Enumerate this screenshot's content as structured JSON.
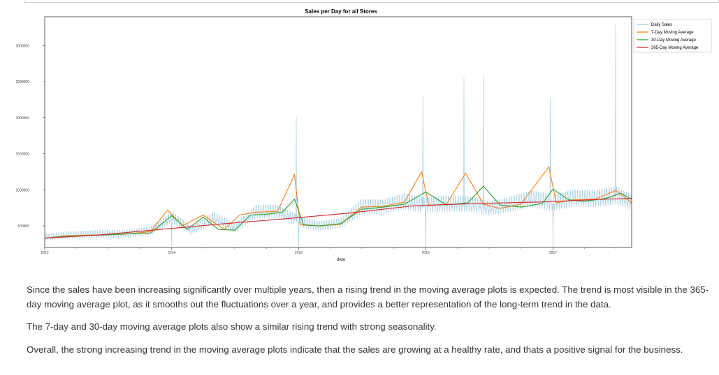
{
  "chart_data": {
    "type": "line",
    "title": "Sales per Day for all Stores",
    "xlabel": "date",
    "ylabel": "",
    "x_range": [
      "2013-01-01",
      "2017-08-15"
    ],
    "ylim": [
      200000,
      3400000
    ],
    "x_ticks": [
      {
        "label": "2013",
        "date": "2013-01-01"
      },
      {
        "label": "2014",
        "date": "2014-01-01"
      },
      {
        "label": "2015",
        "date": "2015-01-01"
      },
      {
        "label": "2016",
        "date": "2016-01-01"
      },
      {
        "label": "2017",
        "date": "2017-01-01"
      }
    ],
    "y_ticks": [
      {
        "label": "500000",
        "value": 500000
      },
      {
        "label": "1000000",
        "value": 1000000
      },
      {
        "label": "1500000",
        "value": 1500000
      },
      {
        "label": "2000000",
        "value": 2000000
      },
      {
        "label": "2500000",
        "value": 2500000
      },
      {
        "label": "3000000",
        "value": 3000000
      }
    ],
    "grid": false,
    "legend_position": "outside-right",
    "series": [
      {
        "name": "Daily Sales",
        "color": "#a6cee3",
        "x": [
          "2013-01-01",
          "2013-03-01",
          "2013-05-01",
          "2013-07-01",
          "2013-09-01",
          "2013-11-01",
          "2014-01-01",
          "2014-03-01",
          "2014-05-01",
          "2014-07-01",
          "2014-09-01",
          "2014-11-01",
          "2015-01-01",
          "2015-03-01",
          "2015-05-01",
          "2015-07-01",
          "2015-09-01",
          "2015-11-01",
          "2016-01-01",
          "2016-03-01",
          "2016-05-01",
          "2016-07-01",
          "2016-09-01",
          "2016-11-01",
          "2017-01-01",
          "2017-03-01",
          "2017-05-01",
          "2017-07-01",
          "2017-08-15"
        ],
        "values": [
          330000,
          360000,
          370000,
          380000,
          380000,
          420000,
          600000,
          420000,
          600000,
          450000,
          680000,
          680000,
          550000,
          480000,
          520000,
          750000,
          740000,
          820000,
          760000,
          790000,
          780000,
          720000,
          780000,
          850000,
          800000,
          860000,
          850000,
          900000,
          800000
        ],
        "spikes": [
          {
            "x": "2014-12-25",
            "y": 2020000
          },
          {
            "x": "2015-12-24",
            "y": 2290000
          },
          {
            "x": "2016-04-20",
            "y": 2550000
          },
          {
            "x": "2016-06-15",
            "y": 2580000
          },
          {
            "x": "2016-12-24",
            "y": 2280000
          },
          {
            "x": "2017-06-30",
            "y": 3290000
          }
        ],
        "dips": [
          {
            "x": "2014-01-01",
            "y": 230000
          },
          {
            "x": "2015-01-01",
            "y": 220000
          },
          {
            "x": "2016-01-01",
            "y": 210000
          },
          {
            "x": "2017-01-01",
            "y": 200000
          }
        ]
      },
      {
        "name": "7-Day Moving Average",
        "color": "#ff7f0e",
        "x": [
          "2013-01-01",
          "2013-03-01",
          "2013-05-01",
          "2013-07-01",
          "2013-09-01",
          "2013-11-01",
          "2013-12-20",
          "2014-02-01",
          "2014-04-01",
          "2014-06-01",
          "2014-07-15",
          "2014-09-01",
          "2014-11-01",
          "2014-12-20",
          "2015-01-05",
          "2015-03-01",
          "2015-05-01",
          "2015-07-01",
          "2015-09-01",
          "2015-11-01",
          "2015-12-20",
          "2016-01-10",
          "2016-03-01",
          "2016-04-25",
          "2016-06-15",
          "2016-08-01",
          "2016-10-01",
          "2016-12-20",
          "2017-01-10",
          "2017-03-01",
          "2017-05-01",
          "2017-07-01",
          "2017-08-15"
        ],
        "values": [
          330000,
          360000,
          370000,
          380000,
          390000,
          420000,
          720000,
          500000,
          650000,
          450000,
          650000,
          690000,
          700000,
          1210000,
          520000,
          500000,
          520000,
          760000,
          770000,
          830000,
          1250000,
          780000,
          800000,
          1230000,
          800000,
          740000,
          800000,
          1320000,
          820000,
          860000,
          870000,
          990000,
          820000
        ]
      },
      {
        "name": "30-Day Moving Average",
        "color": "#2ca02c",
        "x": [
          "2013-01-01",
          "2013-03-01",
          "2013-05-01",
          "2013-07-01",
          "2013-09-01",
          "2013-11-01",
          "2014-01-01",
          "2014-02-15",
          "2014-04-01",
          "2014-05-15",
          "2014-07-01",
          "2014-08-15",
          "2014-10-01",
          "2014-11-15",
          "2014-12-20",
          "2015-01-15",
          "2015-03-01",
          "2015-05-01",
          "2015-07-01",
          "2015-09-01",
          "2015-11-01",
          "2016-01-01",
          "2016-03-01",
          "2016-05-01",
          "2016-06-15",
          "2016-08-01",
          "2016-10-01",
          "2016-12-01",
          "2017-01-01",
          "2017-02-15",
          "2017-04-01",
          "2017-06-01",
          "2017-07-15",
          "2017-08-15"
        ],
        "values": [
          330000,
          355000,
          365000,
          375000,
          390000,
          400000,
          640000,
          450000,
          620000,
          450000,
          440000,
          650000,
          660000,
          690000,
          870000,
          510000,
          500000,
          530000,
          730000,
          760000,
          800000,
          970000,
          790000,
          820000,
          1050000,
          790000,
          760000,
          810000,
          1010000,
          860000,
          840000,
          880000,
          950000,
          870000
        ]
      },
      {
        "name": "365-Day Moving Average",
        "color": "#d62728",
        "x": [
          "2013-01-01",
          "2013-06-01",
          "2013-12-01",
          "2014-06-01",
          "2014-12-01",
          "2015-06-01",
          "2015-12-01",
          "2016-06-01",
          "2016-12-01",
          "2017-06-01",
          "2017-08-15"
        ],
        "values": [
          330000,
          370000,
          450000,
          530000,
          600000,
          680000,
          780000,
          810000,
          830000,
          870000,
          880000
        ]
      }
    ]
  },
  "paragraphs": {
    "p1": "Since the sales have been increasing significantly over multiple years, then a rising trend in the moving average plots is expected. The trend is most visible in the 365-day moving average plot, as it smooths out the fluctuations over a year, and provides a better representation of the long-term trend in the data.",
    "p2": "The 7-day and 30-day moving average plots also show a similar rising trend with strong seasonality.",
    "p3": "Overall, the strong increasing trend in the moving average plots indicate that the sales are growing at a healthy rate, and thats a positive signal for the business."
  }
}
